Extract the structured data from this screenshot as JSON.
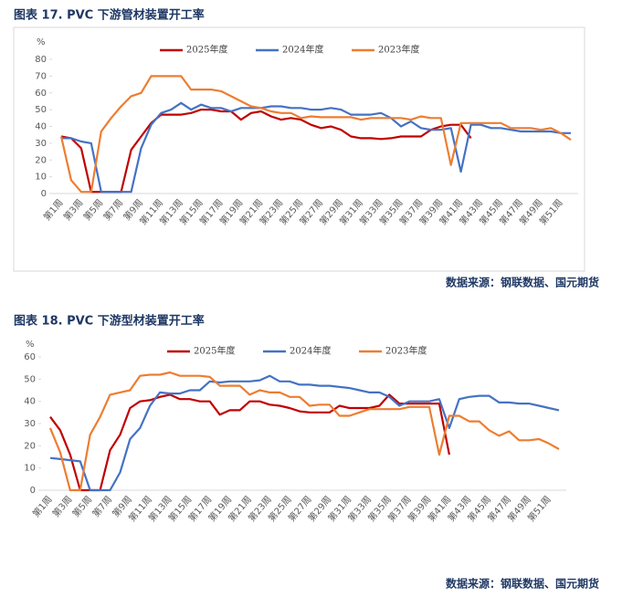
{
  "chart_data": [
    {
      "type": "line",
      "title": "图表 17. PVC 下游管材装置开工率",
      "ylabel": "%",
      "source": "数据来源：钢联数据、国元期货",
      "categories": [
        "第1周",
        null,
        "第3周",
        null,
        "第5周",
        null,
        "第7周",
        null,
        "第9周",
        null,
        "第11周",
        null,
        "第13周",
        null,
        "第15周",
        null,
        "第17周",
        null,
        "第19周",
        null,
        "第21周",
        null,
        "第23周",
        null,
        "第25周",
        null,
        "第27周",
        null,
        "第29周",
        null,
        "第31周",
        null,
        "第33周",
        null,
        "第35周",
        null,
        "第37周",
        null,
        "第39周",
        null,
        "第41周",
        null,
        "第43周",
        null,
        "第45周",
        null,
        "第47周",
        null,
        "第49周",
        null,
        "第51周",
        null
      ],
      "ylim": [
        0,
        80
      ],
      "yticks": [
        0,
        10,
        20,
        30,
        40,
        50,
        60,
        70,
        80
      ],
      "grid": false,
      "legend": "top",
      "series": [
        {
          "name": "2025年度",
          "color": "#c00000",
          "values": [
            34,
            33,
            27,
            1,
            1,
            1,
            1,
            26,
            34,
            42,
            47,
            47,
            47,
            48,
            50,
            50,
            49,
            49,
            44,
            48,
            49,
            46,
            44,
            45,
            44,
            41,
            39,
            40,
            38,
            34,
            33,
            33,
            32.5,
            33,
            34,
            34,
            34,
            38,
            40,
            41,
            41,
            33,
            null,
            null,
            null,
            null,
            null,
            null,
            null,
            null,
            null,
            null
          ]
        },
        {
          "name": "2024年度",
          "color": "#4472c4",
          "values": [
            33,
            33,
            31,
            30,
            1,
            1,
            1,
            1,
            27,
            41,
            48,
            50,
            54,
            50,
            53,
            51,
            51,
            49,
            51,
            51,
            51,
            52,
            52,
            51,
            51,
            50,
            50,
            51,
            50,
            47,
            47,
            47,
            48,
            45,
            40,
            43,
            39,
            38,
            38,
            39,
            13,
            41,
            41,
            39,
            39,
            38,
            37,
            37,
            37,
            37,
            36,
            36
          ]
        },
        {
          "name": "2023年度",
          "color": "#ed7d31",
          "values": [
            34,
            8,
            1,
            1,
            37,
            45,
            52,
            58,
            60,
            70,
            70,
            70,
            70,
            62,
            62,
            62,
            61,
            58,
            55,
            52,
            51,
            49,
            48,
            48,
            45,
            46,
            45.5,
            45.5,
            45.5,
            45.5,
            44,
            45,
            45,
            45,
            45,
            44,
            46,
            45,
            45,
            17,
            42,
            42,
            42,
            42,
            42,
            39,
            39,
            39,
            38,
            39,
            36,
            32
          ]
        }
      ]
    },
    {
      "type": "line",
      "title": "图表 18. PVC 下游型材装置开工率",
      "ylabel": "%",
      "source": "数据来源：钢联数据、国元期货",
      "categories": [
        "第1周",
        null,
        "第3周",
        null,
        "第5周",
        null,
        "第7周",
        null,
        "第9周",
        null,
        "第11周",
        null,
        "第13周",
        null,
        "第15周",
        null,
        "第17周",
        null,
        "第19周",
        null,
        "第21周",
        null,
        "第23周",
        null,
        "第25周",
        null,
        "第27周",
        null,
        "第29周",
        null,
        "第31周",
        null,
        "第33周",
        null,
        "第35周",
        null,
        "第37周",
        null,
        "第39周",
        null,
        "第41周",
        null,
        "第43周",
        null,
        "第45周",
        null,
        "第47周",
        null,
        "第49周",
        null,
        "第51周",
        null
      ],
      "ylim": [
        0,
        60
      ],
      "yticks": [
        0,
        10,
        20,
        30,
        40,
        50,
        60
      ],
      "grid": false,
      "legend": "top",
      "series": [
        {
          "name": "2025年度",
          "color": "#c00000",
          "values": [
            33,
            27,
            16,
            0,
            0,
            0,
            18,
            25,
            37,
            40,
            40.5,
            42,
            43,
            41,
            41,
            40,
            40,
            34,
            36,
            36,
            40,
            40,
            38.5,
            38,
            37,
            35.5,
            35,
            35,
            35,
            38,
            37,
            37,
            37,
            38,
            43,
            39,
            39,
            39,
            39,
            39,
            16,
            null,
            null,
            null,
            null,
            null,
            null,
            null,
            null,
            null,
            null,
            null
          ]
        },
        {
          "name": "2024年度",
          "color": "#4472c4",
          "values": [
            14.5,
            14,
            13.5,
            13,
            0,
            0,
            0,
            8,
            23,
            28,
            38,
            44,
            43.5,
            43.5,
            45,
            45,
            49,
            48.5,
            49,
            49,
            49,
            49.5,
            51.5,
            49,
            49,
            47.5,
            47.5,
            47,
            47,
            46.5,
            46,
            45,
            44,
            44,
            42,
            38,
            40,
            40,
            40,
            41,
            28,
            41,
            42,
            42.5,
            42.5,
            39.5,
            39.5,
            39,
            39,
            38,
            37,
            36
          ]
        },
        {
          "name": "2023年度",
          "color": "#ed7d31",
          "values": [
            28,
            17,
            0,
            0,
            25,
            33,
            43,
            44,
            45,
            51.5,
            52,
            52,
            53,
            51.5,
            51.5,
            51.5,
            51,
            47,
            47,
            47,
            43,
            45,
            44,
            44,
            42,
            42,
            38,
            38.5,
            38.5,
            33.5,
            33.5,
            35,
            36.5,
            36.5,
            36.5,
            36.5,
            37.5,
            37.5,
            37.5,
            16,
            33.5,
            33.5,
            31,
            31,
            27,
            24.5,
            26.5,
            22.5,
            22.5,
            23,
            21,
            18.5
          ]
        }
      ]
    }
  ]
}
